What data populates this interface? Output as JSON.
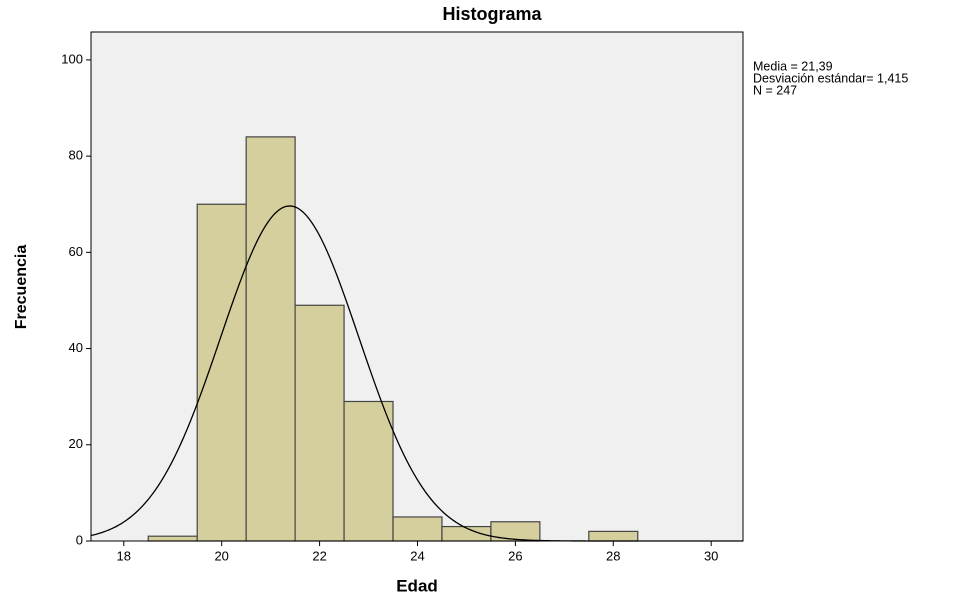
{
  "chart_data": {
    "type": "histogram",
    "title": "Histograma",
    "x_label": "Edad",
    "y_label": "Frecuencia",
    "bins": [
      18.5,
      19.5,
      20.5,
      21.5,
      22.5,
      23.5,
      24.5,
      25.5,
      26.5,
      27.5,
      28.5
    ],
    "counts": [
      1,
      70,
      84,
      49,
      29,
      5,
      3,
      4,
      0,
      2
    ],
    "color": "#d4cf9c",
    "xlim": [
      17.33,
      30.65
    ],
    "xticks": [
      18,
      20,
      22,
      24,
      26,
      28,
      30
    ],
    "ylim": [
      0,
      105.8
    ],
    "yticks": [
      0,
      20,
      40,
      60,
      80,
      100
    ],
    "grid": false,
    "normal_curve": {
      "mean": 21.39,
      "sd": 1.415,
      "n": 247
    },
    "annotations": [
      "Media = 21,39",
      "Desviación estándar= 1,415",
      "N = 247"
    ]
  }
}
